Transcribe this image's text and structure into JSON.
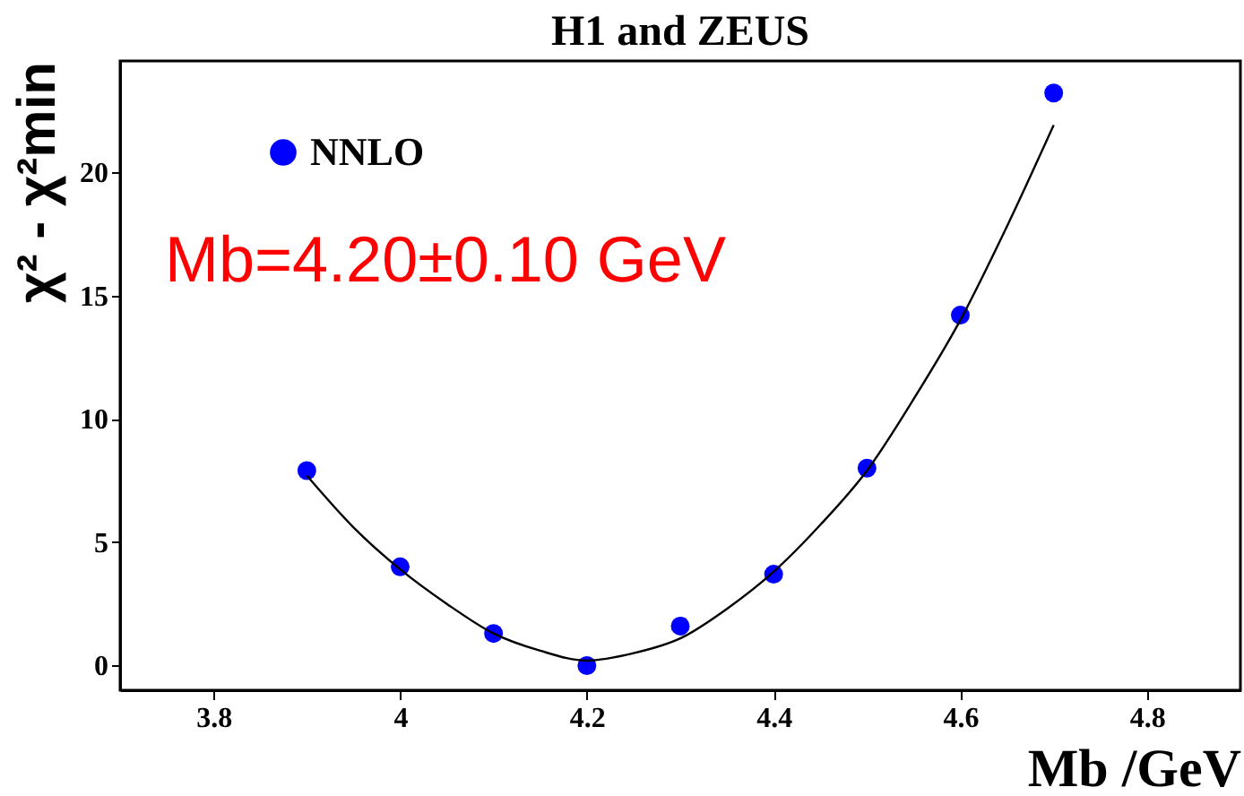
{
  "chart_data": {
    "type": "scatter",
    "title": "H1 and ZEUS",
    "xlabel": "Mb /GeV",
    "ylabel": "χ² - χ²min",
    "xlim": [
      3.7,
      4.9
    ],
    "xticks": [
      3.8,
      4,
      4.2,
      4.4,
      4.6,
      4.8
    ],
    "ylim": [
      -1,
      24.5
    ],
    "yticks": [
      0,
      5,
      10,
      15,
      20
    ],
    "grid": false,
    "legend": "top left",
    "annotations": [
      "Mb=4.20±0.10 GeV"
    ],
    "series": [
      {
        "name": "NNLO",
        "color": "#0000ff",
        "marker": "circle",
        "x": [
          3.9,
          4.0,
          4.1,
          4.2,
          4.3,
          4.4,
          4.5,
          4.6,
          4.7
        ],
        "values": [
          7.9,
          4.0,
          1.3,
          0.0,
          1.6,
          3.7,
          8.0,
          14.2,
          23.2
        ]
      },
      {
        "type": "line",
        "color": "#000000",
        "line_style": "solid",
        "marker": "none",
        "x": [
          3.9,
          3.95,
          4.0,
          4.05,
          4.1,
          4.15,
          4.2,
          4.25,
          4.3,
          4.35,
          4.4,
          4.45,
          4.5,
          4.55,
          4.6,
          4.65,
          4.7
        ],
        "values": [
          7.7,
          5.6,
          3.9,
          2.5,
          1.3,
          0.6,
          0.2,
          0.5,
          1.1,
          2.3,
          3.8,
          5.7,
          7.9,
          10.8,
          14.0,
          17.8,
          21.9
        ]
      }
    ]
  }
}
